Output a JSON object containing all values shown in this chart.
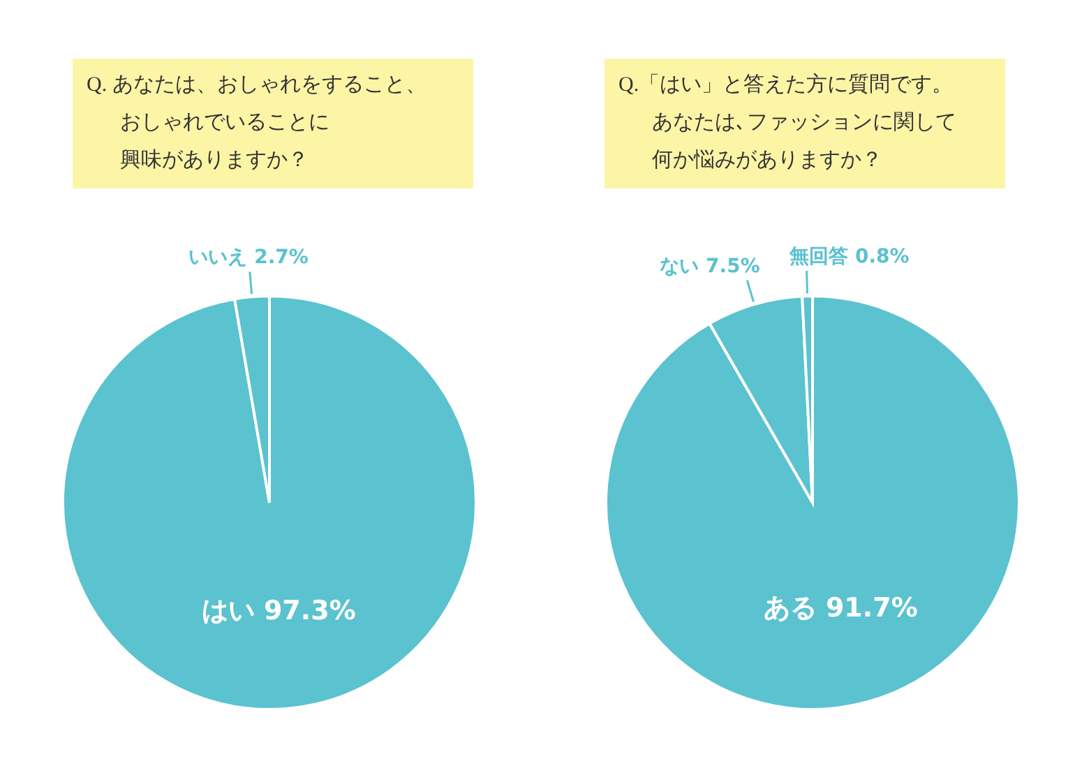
{
  "chart_data": [
    {
      "type": "pie",
      "title": "Q. あなたは、おしゃれをすること、おしゃれでいることに興味がありますか？",
      "categories": [
        "はい",
        "いいえ"
      ],
      "values": [
        97.3,
        2.7
      ],
      "value_labels": [
        "97.3%",
        "2.7%"
      ],
      "colors": [
        "#5bc2cf",
        "#5bc2cf"
      ]
    },
    {
      "type": "pie",
      "title": "Q.「はい」と答えた方に質問です。あなたは､ファッションに関して何か悩みがありますか？",
      "categories": [
        "ある",
        "ない",
        "無回答"
      ],
      "values": [
        91.7,
        7.5,
        0.8
      ],
      "value_labels": [
        "91.7%",
        "7.5%",
        "0.8%"
      ],
      "colors": [
        "#5bc2cf",
        "#5bc2cf",
        "#5bc2cf"
      ]
    }
  ]
}
